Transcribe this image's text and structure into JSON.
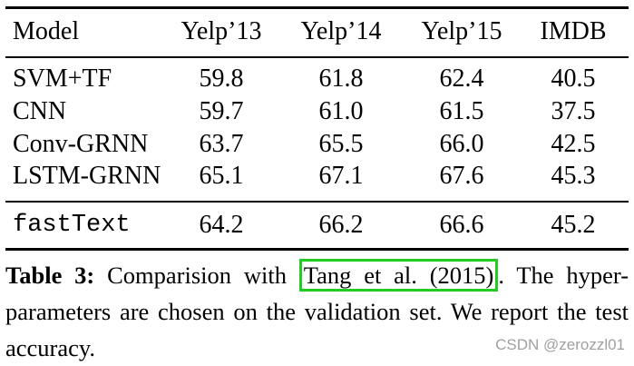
{
  "table": {
    "columns": [
      "Model",
      "Yelp’13",
      "Yelp’14",
      "Yelp’15",
      "IMDB"
    ],
    "rows": [
      [
        "SVM+TF",
        "59.8",
        "61.8",
        "62.4",
        "40.5"
      ],
      [
        "CNN",
        "59.7",
        "61.0",
        "61.5",
        "37.5"
      ],
      [
        "Conv-GRNN",
        "63.7",
        "65.5",
        "66.0",
        "42.5"
      ],
      [
        "LSTM-GRNN",
        "65.1",
        "67.1",
        "67.6",
        "45.3"
      ]
    ],
    "highlight_row": [
      "fastText",
      "64.2",
      "66.2",
      "66.6",
      "45.2"
    ]
  },
  "caption": {
    "label": "Table 3:",
    "text_before": "Comparision with",
    "citation": "Tang et al. (2015)",
    "text_after": ". The hyper-parameters are chosen on the validation set. We report the test accuracy."
  },
  "watermark": "CSDN @zerozzl01",
  "colors": {
    "citation_box": "#22cc22",
    "watermark": "#a0a0a0"
  }
}
